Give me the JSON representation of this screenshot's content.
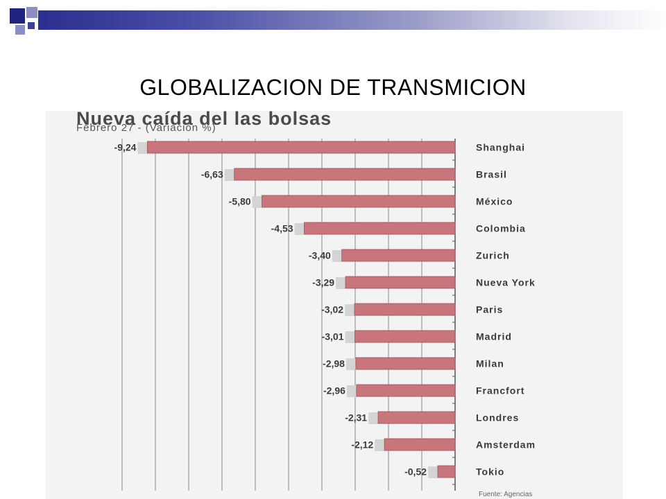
{
  "slide": {
    "title": "GLOBALIZACION DE TRANSMICION"
  },
  "colors": {
    "bar": "#c9757c",
    "bar_stroke": "#a85b62",
    "header_start": "#2b2f8f",
    "header_end": "#ffffff"
  },
  "chart_data": {
    "type": "bar",
    "orientation": "horizontal",
    "title": "Nueva caída del las bolsas",
    "subtitle": "Febrero 27 - (Variación %)",
    "categories": [
      "Shanghai",
      "Brasil",
      "México",
      "Colombia",
      "Zurich",
      "Nueva York",
      "Paris",
      "Madrid",
      "Milan",
      "Francfort",
      "Londres",
      "Amsterdam",
      "Tokio"
    ],
    "values": [
      -9.24,
      -6.63,
      -5.8,
      -4.53,
      -3.4,
      -3.29,
      -3.02,
      -3.01,
      -2.98,
      -2.96,
      -2.31,
      -2.12,
      -0.52
    ],
    "value_labels": [
      "-9,24",
      "-6,63",
      "-5,80",
      "-4,53",
      "-3,40",
      "-3,29",
      "-3,02",
      "-3,01",
      "-2,98",
      "-2,96",
      "-2,31",
      "-2,12",
      "-0,52"
    ],
    "xlim": [
      -10,
      0
    ],
    "grid": true,
    "source": "Fuente: Agencias"
  }
}
